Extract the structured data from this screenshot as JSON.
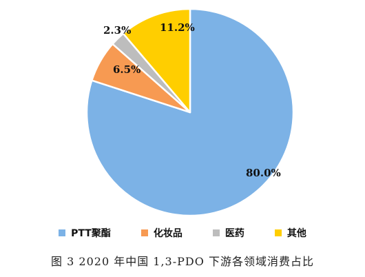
{
  "caption": "图 3   2020 年中国 1,3-PDO 下游各领域消费占比",
  "chart_data": {
    "type": "pie",
    "start_angle_deg": 0,
    "direction": "clockwise",
    "legend_position": "bottom",
    "slices": [
      {
        "name": "PTT聚酯",
        "value": 80.0,
        "label": "80.0%",
        "color": "#7CB2E6"
      },
      {
        "name": "化妆品",
        "value": 6.5,
        "label": "6.5%",
        "color": "#F79A52"
      },
      {
        "name": "医药",
        "value": 2.3,
        "label": "2.3%",
        "color": "#BDBDBD"
      },
      {
        "name": "其他",
        "value": 11.2,
        "label": "11.2%",
        "color": "#FFCE00"
      }
    ]
  }
}
